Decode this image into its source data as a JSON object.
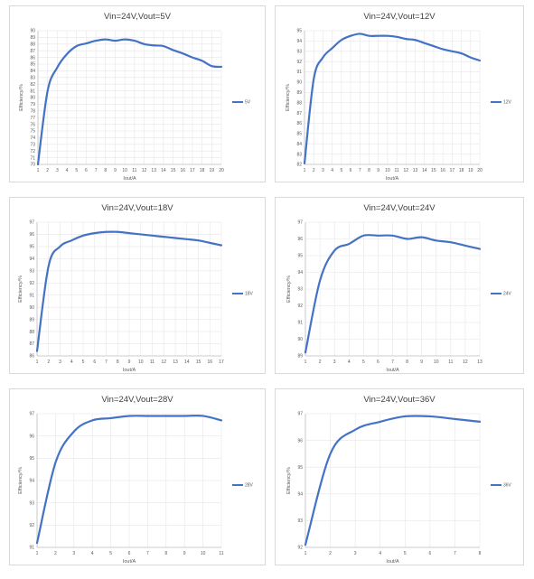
{
  "chart_data": [
    {
      "type": "line",
      "title": "Vin=24V,Vout=5V",
      "xlabel": "Iout/A",
      "ylabel": "Efficiency/%",
      "ylim": [
        70,
        90
      ],
      "yticks": [
        70,
        71,
        72,
        73,
        74,
        75,
        76,
        77,
        78,
        79,
        80,
        81,
        82,
        83,
        84,
        85,
        86,
        87,
        88,
        89,
        90
      ],
      "xticks": [
        1,
        2,
        3,
        4,
        5,
        6,
        7,
        8,
        9,
        10,
        11,
        12,
        13,
        14,
        15,
        16,
        17,
        18,
        19,
        20
      ],
      "grid": true,
      "legend_position": "right",
      "series": [
        {
          "name": "5V",
          "color": "#4472c4",
          "x": [
            1,
            2,
            3,
            4,
            5,
            6,
            7,
            8,
            9,
            10,
            11,
            12,
            13,
            14,
            15,
            16,
            17,
            18,
            19,
            20
          ],
          "y": [
            70,
            81,
            84.5,
            86.5,
            87.7,
            88.1,
            88.5,
            88.7,
            88.5,
            88.7,
            88.5,
            88.0,
            87.8,
            87.7,
            87.1,
            86.6,
            86.0,
            85.5,
            84.7,
            84.6
          ]
        }
      ]
    },
    {
      "type": "line",
      "title": "Vin=24V,Vout=12V",
      "xlabel": "Iout/A",
      "ylabel": "Efficiency/%",
      "ylim": [
        82,
        95
      ],
      "yticks": [
        82,
        83,
        84,
        85,
        86,
        87,
        88,
        89,
        90,
        91,
        92,
        93,
        94,
        95
      ],
      "xticks": [
        1,
        2,
        3,
        4,
        5,
        6,
        7,
        8,
        9,
        10,
        11,
        12,
        13,
        14,
        15,
        16,
        17,
        18,
        19,
        20
      ],
      "grid": true,
      "legend_position": "right",
      "series": [
        {
          "name": "12V",
          "color": "#4472c4",
          "x": [
            1,
            2,
            3,
            4,
            5,
            6,
            7,
            8,
            9,
            10,
            11,
            12,
            13,
            14,
            15,
            16,
            17,
            18,
            19,
            20
          ],
          "y": [
            82.1,
            90.3,
            92.4,
            93.3,
            94.1,
            94.5,
            94.7,
            94.5,
            94.5,
            94.5,
            94.4,
            94.2,
            94.1,
            93.8,
            93.5,
            93.2,
            93.0,
            92.8,
            92.4,
            92.1
          ]
        }
      ]
    },
    {
      "type": "line",
      "title": "Vin=24V,Vout=18V",
      "xlabel": "Iout/A",
      "ylabel": "Efficiency/%",
      "ylim": [
        86,
        97
      ],
      "yticks": [
        86,
        87,
        88,
        89,
        90,
        91,
        92,
        93,
        94,
        95,
        96,
        97
      ],
      "xticks": [
        1,
        2,
        3,
        4,
        5,
        6,
        7,
        8,
        9,
        10,
        11,
        12,
        13,
        14,
        15,
        16,
        17
      ],
      "grid": true,
      "legend_position": "right",
      "series": [
        {
          "name": "18V",
          "color": "#4472c4",
          "x": [
            1,
            2,
            3,
            4,
            5,
            6,
            7,
            8,
            9,
            10,
            11,
            12,
            13,
            14,
            15,
            16,
            17
          ],
          "y": [
            86.4,
            93.4,
            95.0,
            95.5,
            95.9,
            96.1,
            96.2,
            96.2,
            96.1,
            96.0,
            95.9,
            95.8,
            95.7,
            95.6,
            95.5,
            95.3,
            95.1
          ]
        }
      ]
    },
    {
      "type": "line",
      "title": "Vin=24V,Vout=24V",
      "xlabel": "Iout/A",
      "ylabel": "Efficiency/%",
      "ylim": [
        89,
        97
      ],
      "yticks": [
        89,
        90,
        91,
        92,
        93,
        94,
        95,
        96,
        97
      ],
      "xticks": [
        1,
        2,
        3,
        4,
        5,
        6,
        7,
        8,
        9,
        10,
        11,
        12,
        13
      ],
      "grid": true,
      "legend_position": "right",
      "series": [
        {
          "name": "24V",
          "color": "#4472c4",
          "x": [
            1,
            2,
            3,
            4,
            5,
            6,
            7,
            8,
            9,
            10,
            11,
            12,
            13
          ],
          "y": [
            89.2,
            93.5,
            95.3,
            95.7,
            96.2,
            96.2,
            96.2,
            96.0,
            96.1,
            95.9,
            95.8,
            95.6,
            95.4
          ]
        }
      ]
    },
    {
      "type": "line",
      "title": "Vin=24V,Vout=28V",
      "xlabel": "Iout/A",
      "ylabel": "Efficiency/%",
      "ylim": [
        91,
        97
      ],
      "yticks": [
        91,
        92,
        93,
        94,
        95,
        96,
        97
      ],
      "xticks": [
        1,
        2,
        3,
        4,
        5,
        6,
        7,
        8,
        9,
        10,
        11
      ],
      "grid": true,
      "legend_position": "right",
      "series": [
        {
          "name": "28V",
          "color": "#4472c4",
          "x": [
            1,
            2,
            3,
            4,
            5,
            6,
            7,
            8,
            9,
            10,
            11
          ],
          "y": [
            91.2,
            94.8,
            96.2,
            96.7,
            96.8,
            96.9,
            96.9,
            96.9,
            96.9,
            96.9,
            96.7
          ]
        }
      ]
    },
    {
      "type": "line",
      "title": "Vin=24V,Vout=36V",
      "xlabel": "Iout/A",
      "ylabel": "Efficiency/%",
      "ylim": [
        92,
        97
      ],
      "yticks": [
        92,
        93,
        94,
        95,
        96,
        97
      ],
      "xticks": [
        1,
        2,
        3,
        4,
        5,
        6,
        7,
        8
      ],
      "grid": true,
      "legend_position": "right",
      "series": [
        {
          "name": "36V",
          "color": "#4472c4",
          "x": [
            1,
            2,
            3,
            4,
            5,
            6,
            7,
            8
          ],
          "y": [
            92.1,
            95.5,
            96.4,
            96.7,
            96.9,
            96.9,
            96.8,
            96.7
          ]
        }
      ]
    }
  ]
}
